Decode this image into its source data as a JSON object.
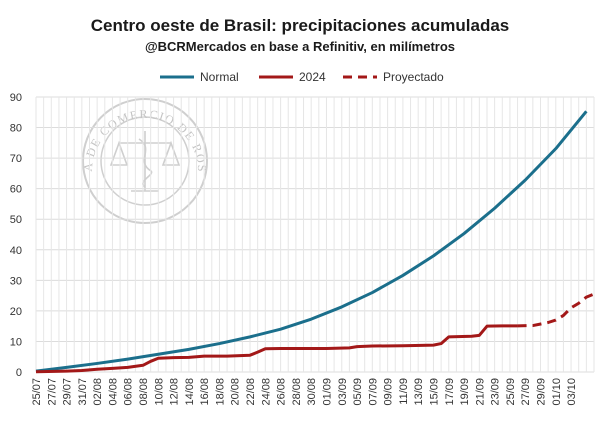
{
  "chart_data": {
    "type": "line",
    "title": "Centro oeste de Brasil: precipitaciones acumuladas",
    "subtitle": "@BCRMercados en base a Refinitiv, en milímetros",
    "xlabel": "",
    "ylabel": "",
    "ylim": [
      0,
      90
    ],
    "yticks": [
      0,
      10,
      20,
      30,
      40,
      50,
      60,
      70,
      80,
      90
    ],
    "grid": true,
    "legend_position": "top-center",
    "x_start": "25/07",
    "x_end": "05/10",
    "x_tick_labels": [
      "25/07",
      "27/07",
      "29/07",
      "31/07",
      "02/08",
      "04/08",
      "06/08",
      "08/08",
      "10/08",
      "12/08",
      "14/08",
      "16/08",
      "18/08",
      "20/08",
      "22/08",
      "24/08",
      "26/08",
      "28/08",
      "30/08",
      "01/09",
      "03/09",
      "05/09",
      "07/09",
      "09/09",
      "11/09",
      "13/09",
      "15/09",
      "17/09",
      "19/09",
      "21/09",
      "23/09",
      "25/09",
      "27/09",
      "29/09",
      "01/10",
      "03/10"
    ],
    "series": [
      {
        "name": "Normal",
        "color": "#1b6f8c",
        "style": "solid",
        "points": [
          [
            0,
            0.3
          ],
          [
            4,
            1.5
          ],
          [
            8,
            2.8
          ],
          [
            12,
            4.2
          ],
          [
            16,
            5.8
          ],
          [
            20,
            7.4
          ],
          [
            24,
            9.3
          ],
          [
            28,
            11.5
          ],
          [
            32,
            14.0
          ],
          [
            36,
            17.3
          ],
          [
            40,
            21.3
          ],
          [
            44,
            26.0
          ],
          [
            48,
            31.6
          ],
          [
            52,
            38.0
          ],
          [
            56,
            45.3
          ],
          [
            60,
            53.6
          ],
          [
            64,
            62.8
          ],
          [
            68,
            73.1
          ],
          [
            72,
            85.3
          ]
        ]
      },
      {
        "name": "2024",
        "color": "#a31818",
        "style": "solid",
        "points": [
          [
            0,
            0.1
          ],
          [
            4,
            0.3
          ],
          [
            6,
            0.5
          ],
          [
            8,
            0.9
          ],
          [
            10,
            1.2
          ],
          [
            12,
            1.5
          ],
          [
            14,
            2.2
          ],
          [
            15,
            3.5
          ],
          [
            16,
            4.5
          ],
          [
            18,
            4.7
          ],
          [
            20,
            4.8
          ],
          [
            22,
            5.2
          ],
          [
            25,
            5.2
          ],
          [
            28,
            5.5
          ],
          [
            29,
            6.5
          ],
          [
            30,
            7.6
          ],
          [
            32,
            7.7
          ],
          [
            38,
            7.7
          ],
          [
            41,
            7.9
          ],
          [
            42,
            8.3
          ],
          [
            44,
            8.5
          ],
          [
            48,
            8.6
          ],
          [
            52,
            8.8
          ],
          [
            53,
            9.3
          ],
          [
            54,
            11.5
          ],
          [
            57,
            11.7
          ],
          [
            58,
            12.0
          ],
          [
            59,
            15.0
          ],
          [
            61,
            15.1
          ],
          [
            63,
            15.1
          ]
        ]
      },
      {
        "name": "Proyectado",
        "color": "#a31818",
        "style": "dashed",
        "points": [
          [
            63,
            15.1
          ],
          [
            65,
            15.2
          ],
          [
            67,
            16.2
          ],
          [
            68,
            17.0
          ],
          [
            69,
            18.5
          ],
          [
            70,
            21.0
          ],
          [
            71,
            22.5
          ],
          [
            72,
            24.5
          ],
          [
            73,
            25.5
          ]
        ]
      }
    ],
    "watermark": "BOLSA DE COMERCIO DE ROSARIO"
  }
}
